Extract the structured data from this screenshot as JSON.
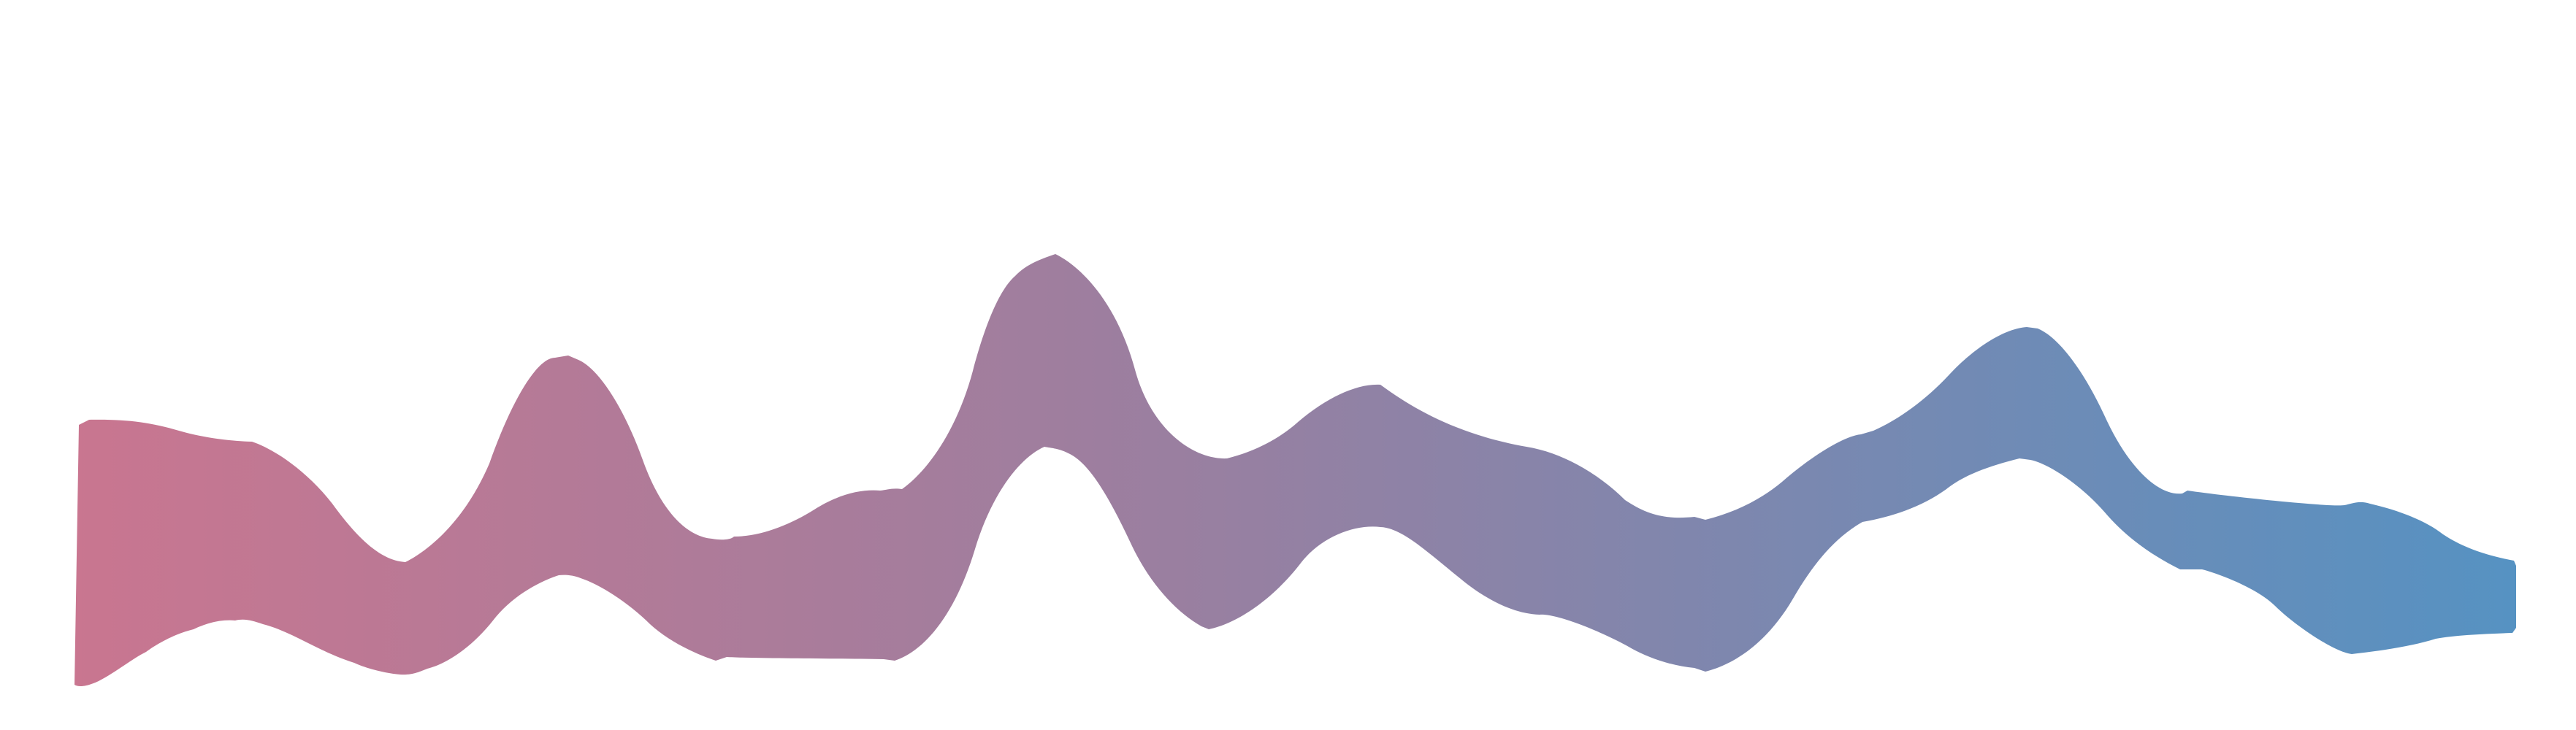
{
  "art": {
    "description_hidden": "",
    "gradient": {
      "start": "#C97690",
      "mid": "#9A7FA0",
      "end": "#5692C2"
    },
    "background": "#FFFFFF"
  }
}
